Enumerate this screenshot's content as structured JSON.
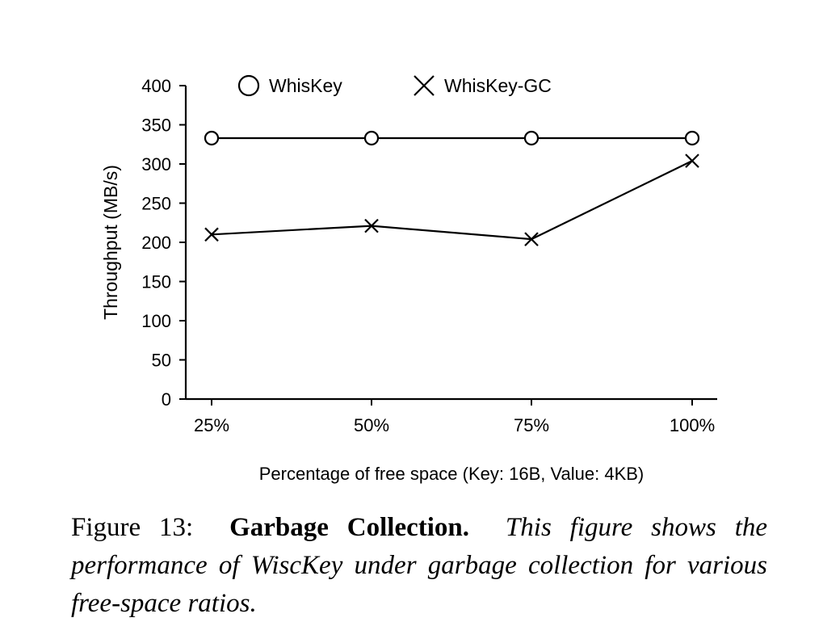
{
  "chart_data": {
    "type": "line",
    "categories": [
      "25%",
      "50%",
      "75%",
      "100%"
    ],
    "series": [
      {
        "name": "WhisKey",
        "marker": "circle",
        "values": [
          333,
          333,
          333,
          333
        ]
      },
      {
        "name": "WhisKey-GC",
        "marker": "cross",
        "values": [
          210,
          221,
          204,
          304
        ]
      }
    ],
    "xlabel": "Percentage of free space (Key: 16B, Value: 4KB)",
    "ylabel": "Throughput (MB/s)",
    "ylim": [
      0,
      400
    ],
    "yticks": [
      0,
      50,
      100,
      150,
      200,
      250,
      300,
      350,
      400
    ],
    "legend_position": "top",
    "grid": false,
    "color": "#000000"
  },
  "caption": {
    "label": "Figure 13:",
    "title": "Garbage Collection.",
    "text": "This figure shows the performance of WiscKey under garbage collection for various free-space ratios."
  }
}
